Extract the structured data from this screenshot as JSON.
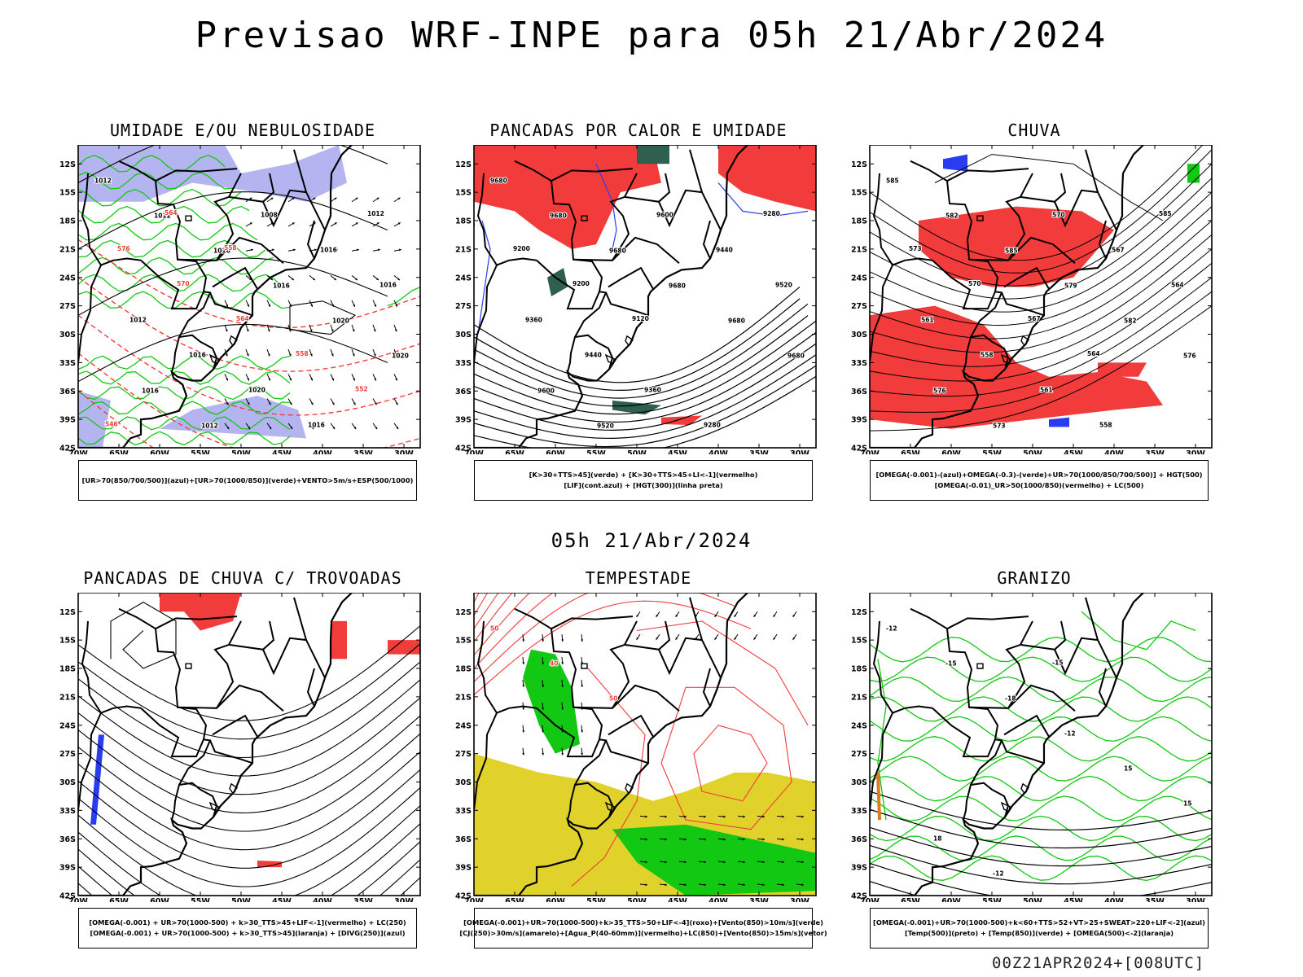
{
  "title": "Previsao WRF-INPE  para 05h 21/Abr/2024",
  "mid_date": "05h 21/Abr/2024",
  "footer_code": "00Z21APR2024+[008UTC]",
  "axes": {
    "lat_labels": [
      "12S",
      "15S",
      "18S",
      "21S",
      "24S",
      "27S",
      "30S",
      "33S",
      "36S",
      "39S",
      "42S"
    ],
    "lon_labels": [
      "70W",
      "65W",
      "60W",
      "55W",
      "50W",
      "45W",
      "40W",
      "35W",
      "30W"
    ]
  },
  "colors": {
    "red": "#f23c3c",
    "green": "#12c812",
    "blue": "#2a3cf0",
    "lavender": "#b4b4f0",
    "yellow": "#e0d22a",
    "darkgreen": "#2f5f4f",
    "black": "#000000"
  },
  "panels": [
    {
      "title": "UMIDADE E/OU NEBULOSIDADE",
      "legend": [
        "[UR>70(850/700/500)](azul)+[UR>70(1000/850)](verde)+VENTO>5m/s+ESP(500/1000)"
      ],
      "contour_labels": [
        "1012",
        "1012",
        "1016",
        "1016",
        "1020",
        "1020",
        "1016",
        "1012",
        "1008",
        "1016",
        "1016",
        "1012",
        "1016",
        "1020",
        "1016",
        "1012",
        "576",
        "570",
        "564",
        "558",
        "552",
        "546",
        "564",
        "558"
      ]
    },
    {
      "title": "PANCADAS POR CALOR E UMIDADE",
      "legend": [
        "[K>30+TTS>45](verde) + [K>30+TTS>45+LI<-1](vermelho)",
        "[LIF](cont.azul) + [HGT(300)](linha preta)"
      ],
      "contour_labels": [
        "9680",
        "9680",
        "9680",
        "9680",
        "9680",
        "9680",
        "9600",
        "9520",
        "9600",
        "9440",
        "9520",
        "9360",
        "9440",
        "9360",
        "9280",
        "9280",
        "9200",
        "9200",
        "9120"
      ]
    },
    {
      "title": "CHUVA",
      "legend": [
        "[OMEGA(-0.001)-(azul)+OMEGA(-0.3)-(verde)+UR>70(1000/850/700/500)] + HGT(500)",
        "[OMEGA(-0.01)_UR>50(1000/850)(vermelho) + LC(500)"
      ],
      "contour_labels": [
        "585",
        "582",
        "585",
        "579",
        "582",
        "576",
        "576",
        "573",
        "570",
        "567",
        "564",
        "561",
        "558",
        "561",
        "558",
        "585",
        "573",
        "570",
        "567",
        "564"
      ]
    },
    {
      "title": "PANCADAS DE CHUVA C/ TROVOADAS",
      "legend": [
        "[OMEGA(-0.001) + UR>70(1000-500) + k>30_TTS>45+LIF<-1](vermelho) + LC(250)",
        "[OMEGA(-0.001) + UR>70(1000-500) + k>30_TTS>45](laranja) + [DIVG(250)](azul)"
      ],
      "contour_labels": []
    },
    {
      "title": "TEMPESTADE",
      "legend": [
        "[OMEGA(-0.001)+UR>70(1000-500)+k>35_TTS>50+LIF<-4](roxo)+[Vento(850)>10m/s](verde)",
        "[CJ(250)>30m/s](amarelo)+[Agua_P(40-60mm)](vermelho)+LC(850)+[Vento(850)>15m/s](vetor)"
      ],
      "contour_labels": [
        "50",
        "40",
        "50"
      ]
    },
    {
      "title": "GRANIZO",
      "legend": [
        "[OMEGA(-0.001)+UR>70(1000-500)+k<60+TTS>52+VT>25+SWEAT>220+LIF<-2](azul)",
        "[Temp(500)](preto) + [Temp(850)](verde) + [OMEGA(500)<-2](laranja)"
      ],
      "contour_labels": [
        "-12",
        "-15",
        "-18",
        "-12",
        "15",
        "15",
        "18",
        "-12",
        "-15"
      ]
    }
  ]
}
